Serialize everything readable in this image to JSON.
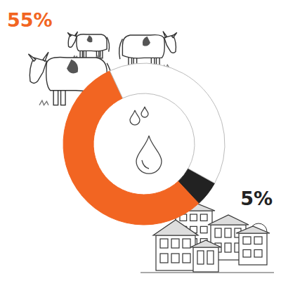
{
  "chart_data": {
    "type": "donut",
    "values": [
      55,
      5,
      40
    ],
    "value_labels": [
      "55%",
      "5%",
      null
    ],
    "colors": [
      "#f26522",
      "#222222",
      "#ffffff"
    ],
    "data_labels": true
  }
}
